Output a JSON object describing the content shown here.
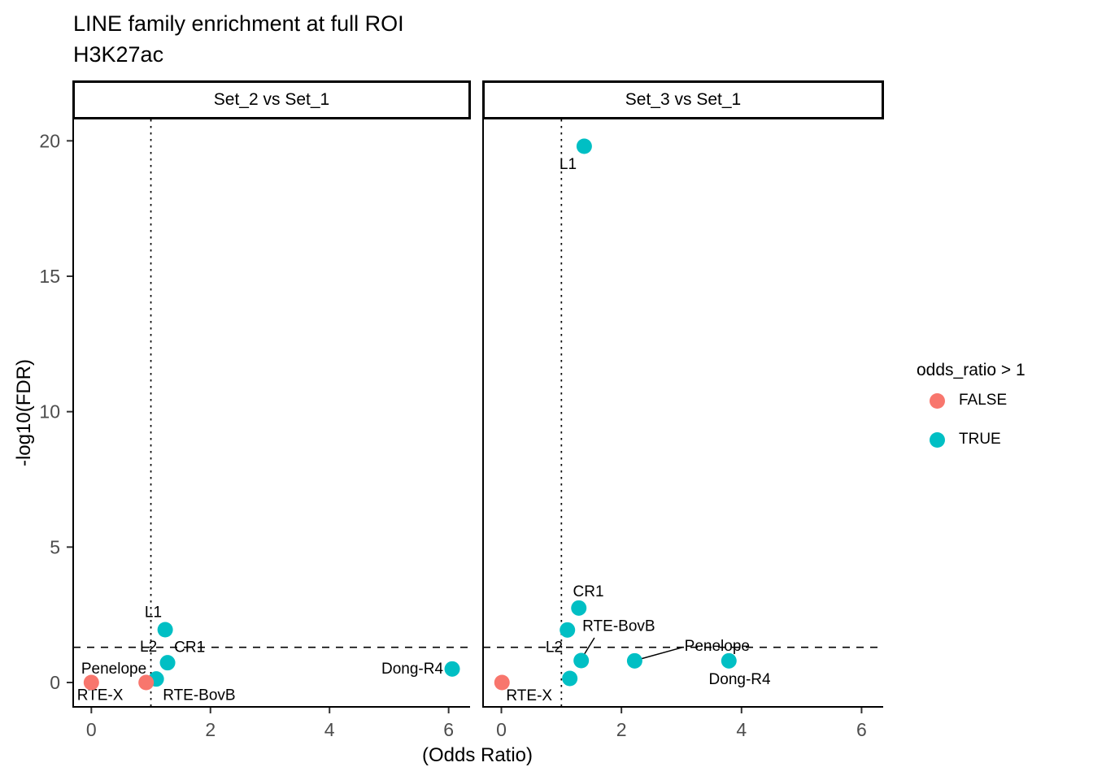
{
  "title": "LINE family enrichment at full ROI",
  "subtitle": "H3K27ac",
  "axes": {
    "x_title": "(Odds Ratio)",
    "y_title": "-log10(FDR)",
    "x_ticks": [
      0,
      2,
      4,
      6
    ],
    "y_ticks": [
      0,
      5,
      10,
      15,
      20
    ]
  },
  "legend": {
    "title": "odds_ratio > 1",
    "items": [
      {
        "label": "FALSE",
        "color": "#F8766D"
      },
      {
        "label": "TRUE",
        "color": "#00BFC4"
      }
    ]
  },
  "colors": {
    "false": "#F8766D",
    "true": "#00BFC4"
  },
  "chart_data": {
    "type": "scatter",
    "xlabel": "(Odds Ratio)",
    "ylabel": "-log10(FDR)",
    "xlim": [
      -0.305,
      6.36
    ],
    "ylim": [
      -0.9,
      20.79
    ],
    "grid": false,
    "reference_lines": {
      "vline_x": 1,
      "hline_y": 1.3
    },
    "legend_position": "right",
    "facets": [
      {
        "label": "Set_2 vs Set_1",
        "points": [
          {
            "name": "RTE-X",
            "x": 0.0,
            "y": 0.0,
            "enriched": false
          },
          {
            "name": "RTE-BovB",
            "x": 1.09,
            "y": 0.13,
            "enriched": true
          },
          {
            "name": "Penelope",
            "x": 0.92,
            "y": 0.0,
            "enriched": false
          },
          {
            "name": "CR1",
            "x": 1.28,
            "y": 0.73,
            "enriched": true
          },
          {
            "name": "L1",
            "x": 1.24,
            "y": 1.95,
            "enriched": true
          },
          {
            "name": "Dong-R4",
            "x": 6.06,
            "y": 0.5,
            "enriched": true
          }
        ],
        "labels": [
          {
            "text": "RTE-X",
            "x": -0.24,
            "y": -0.48,
            "anchor": "start"
          },
          {
            "text": "Penelope",
            "x": -0.17,
            "y": 0.5,
            "anchor": "start"
          },
          {
            "text": "RTE-BovB",
            "x": 1.2,
            "y": -0.48,
            "anchor": "start"
          },
          {
            "text": "L2",
            "x": 0.96,
            "y": 1.3,
            "anchor": "middle"
          },
          {
            "text": "CR1",
            "x": 1.65,
            "y": 1.29,
            "anchor": "middle"
          },
          {
            "text": "L1",
            "x": 1.04,
            "y": 2.58,
            "anchor": "middle"
          },
          {
            "text": "Dong-R4",
            "x": 5.91,
            "y": 0.5,
            "anchor": "end"
          }
        ],
        "leaders": []
      },
      {
        "label": "Set_3 vs Set_1",
        "points": [
          {
            "name": "RTE-X",
            "x": 0.01,
            "y": 0.0,
            "enriched": false
          },
          {
            "name": "L1",
            "x": 1.38,
            "y": 19.8,
            "enriched": true
          },
          {
            "name": "CR1",
            "x": 1.29,
            "y": 2.75,
            "enriched": true
          },
          {
            "name": "L2",
            "x": 1.1,
            "y": 1.94,
            "enriched": true
          },
          {
            "name": "",
            "x": 1.14,
            "y": 0.15,
            "enriched": true
          },
          {
            "name": "RTE-BovB",
            "x": 1.33,
            "y": 0.81,
            "enriched": true
          },
          {
            "name": "Penelope",
            "x": 2.22,
            "y": 0.8,
            "enriched": true
          },
          {
            "name": "Dong-R4",
            "x": 3.79,
            "y": 0.8,
            "enriched": true
          }
        ],
        "labels": [
          {
            "text": "RTE-X",
            "x": 0.08,
            "y": -0.5,
            "anchor": "start"
          },
          {
            "text": "L1",
            "x": 1.11,
            "y": 19.12,
            "anchor": "middle"
          },
          {
            "text": "CR1",
            "x": 1.45,
            "y": 3.35,
            "anchor": "middle"
          },
          {
            "text": "L2",
            "x": 0.88,
            "y": 1.29,
            "anchor": "middle"
          },
          {
            "text": "RTE-BovB",
            "x": 1.35,
            "y": 2.07,
            "anchor": "start"
          },
          {
            "text": "Penelope",
            "x": 3.05,
            "y": 1.33,
            "anchor": "start"
          },
          {
            "text": "Dong-R4",
            "x": 3.97,
            "y": 0.1,
            "anchor": "middle"
          }
        ],
        "leaders": [
          {
            "x1": 1.55,
            "y1": 1.65,
            "x2": 1.37,
            "y2": 1.0
          },
          {
            "x1": 3.02,
            "y1": 1.3,
            "x2": 2.27,
            "y2": 0.84
          }
        ]
      }
    ]
  }
}
